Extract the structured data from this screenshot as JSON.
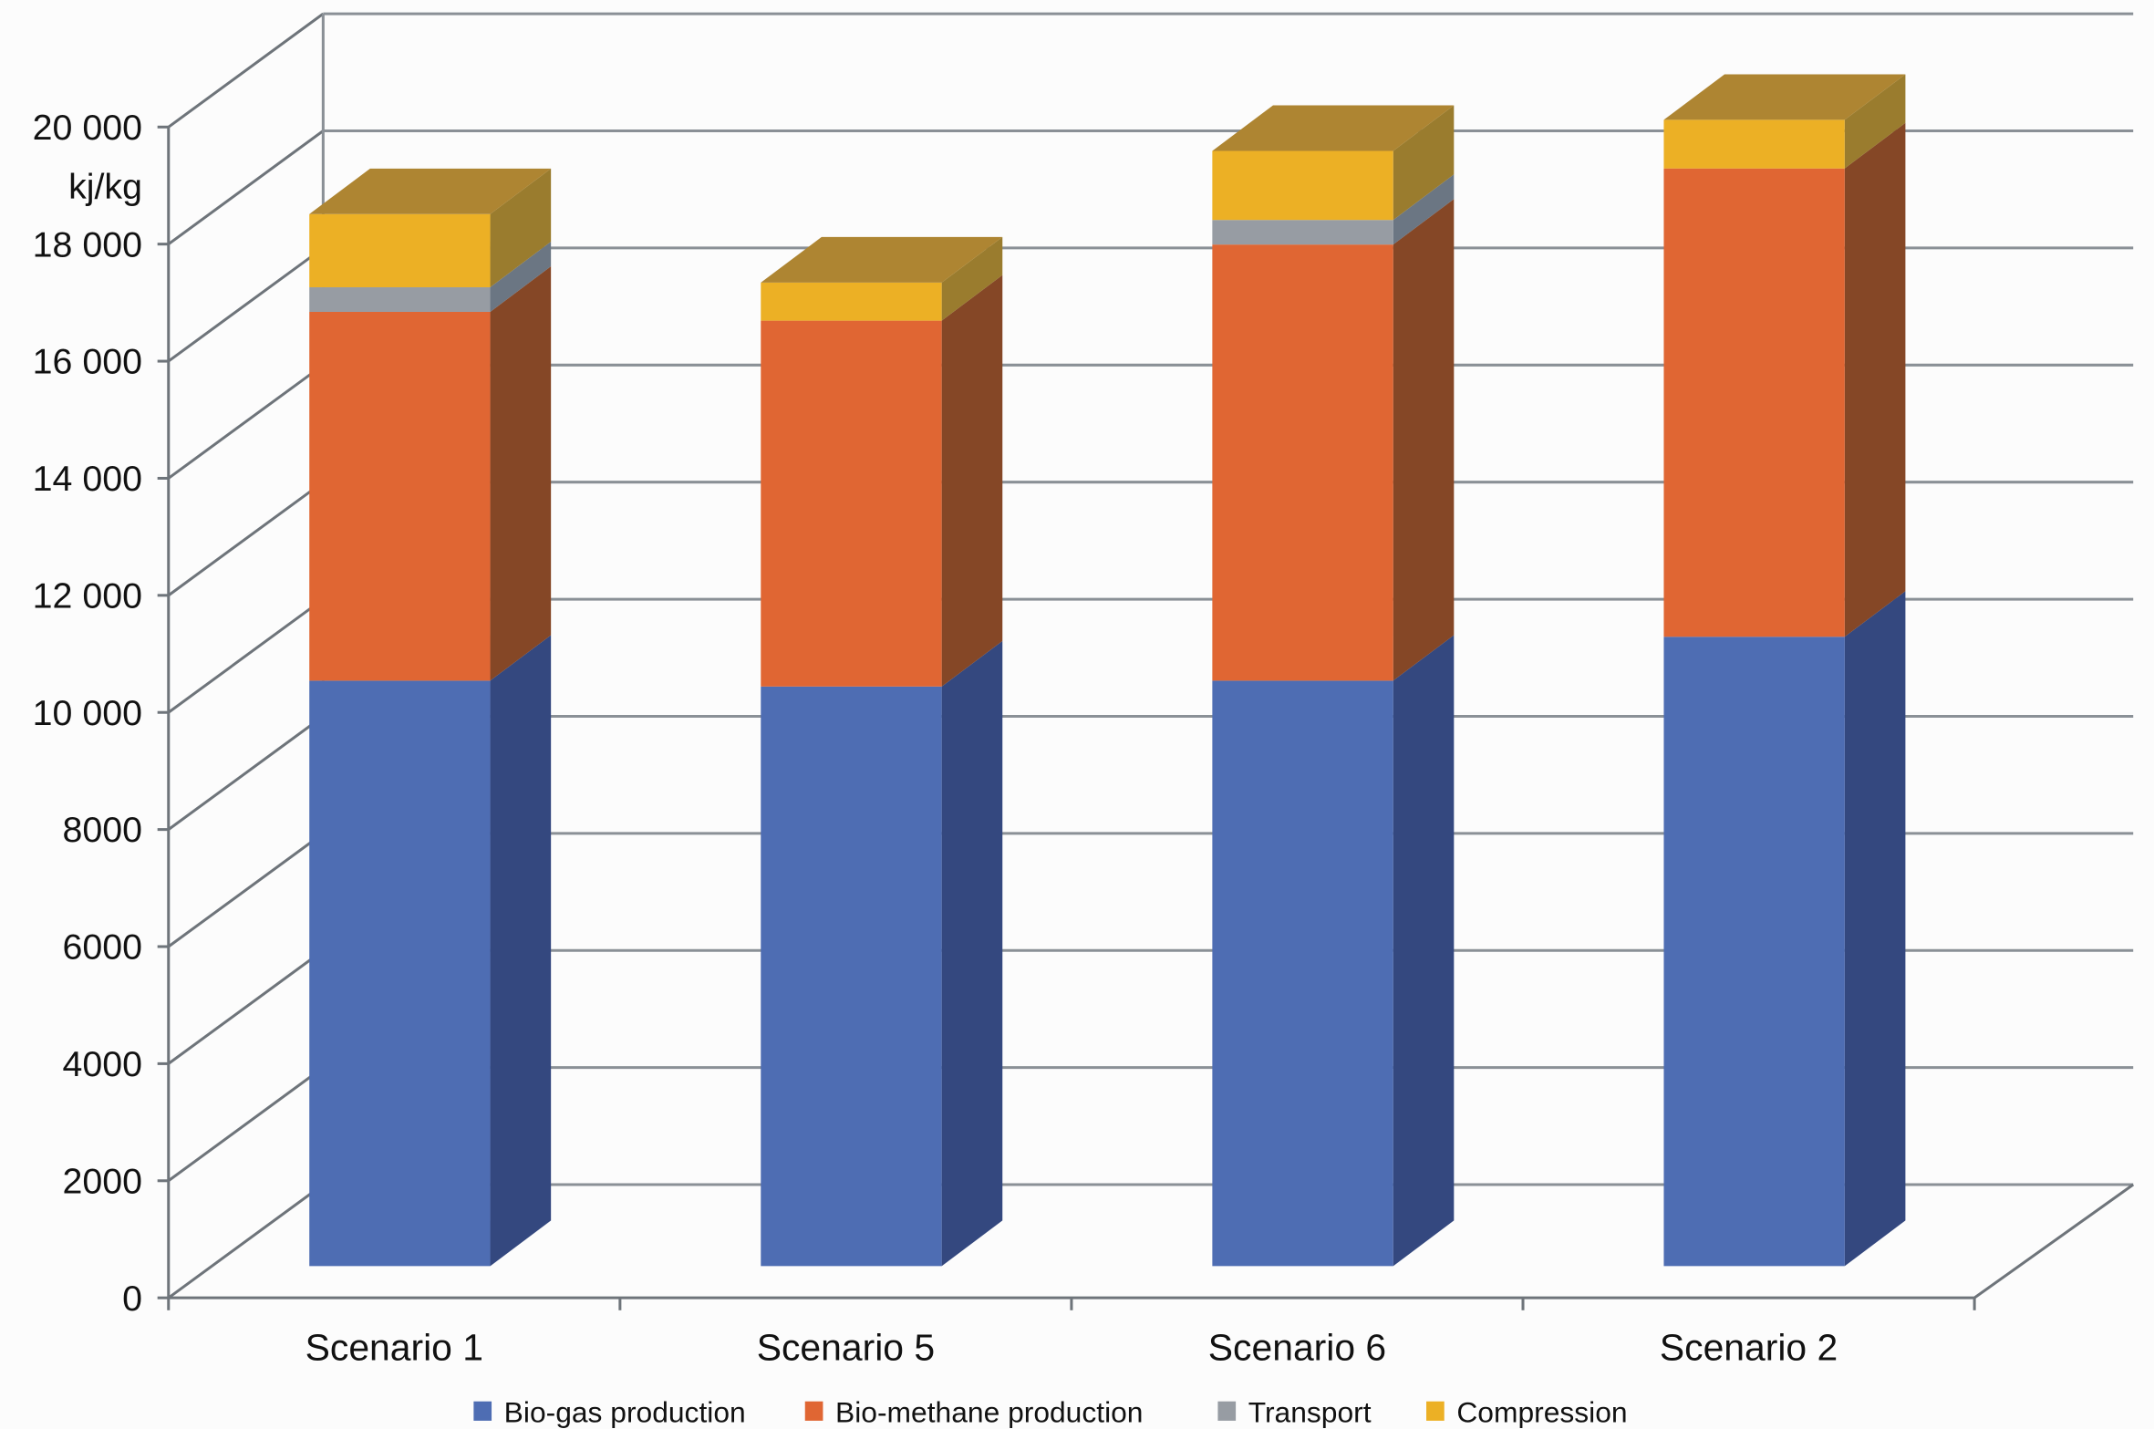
{
  "chart_data": {
    "type": "bar",
    "stacked": true,
    "three_d": true,
    "title": "",
    "xlabel": "",
    "ylabel": "kj/kg",
    "ylim": [
      0,
      20000
    ],
    "yticks": [
      0,
      2000,
      4000,
      6000,
      8000,
      10000,
      12000,
      14000,
      16000,
      18000,
      20000
    ],
    "ytick_labels": [
      "0",
      "2000",
      "4000",
      "6000",
      "8000",
      "10 000",
      "12 000",
      "14 000",
      "16 000",
      "18 000",
      "20 000"
    ],
    "categories": [
      "Scenario 1",
      "Scenario 5",
      "Scenario 6",
      "Scenario 2"
    ],
    "series": [
      {
        "name": "Bio-gas production",
        "color": "#4e6db3",
        "side": "#34487f",
        "values": [
          10000,
          9900,
          10000,
          10750
        ]
      },
      {
        "name": "Bio-methane production",
        "color": "#e06633",
        "side": "#854726",
        "values": [
          6300,
          6250,
          7450,
          8000
        ]
      },
      {
        "name": "Transport",
        "color": "#979ca3",
        "side": "#6b7683",
        "values": [
          420,
          0,
          420,
          0
        ]
      },
      {
        "name": "Compression",
        "color": "#ecb025",
        "side": "#9a7c2e",
        "values": [
          1250,
          650,
          1180,
          830
        ]
      }
    ],
    "top_color": "#ae8532",
    "grid": true,
    "legend_position": "bottom"
  }
}
